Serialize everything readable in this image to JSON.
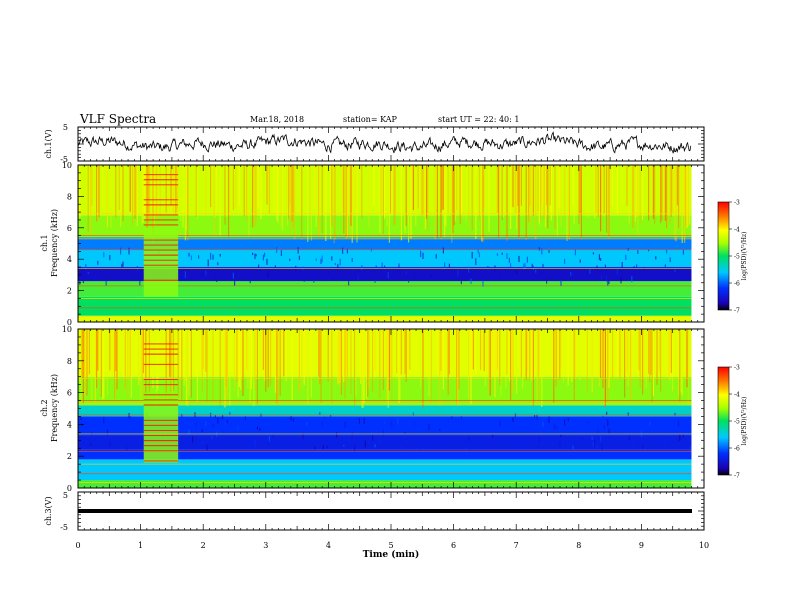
{
  "header": {
    "title": "VLF Spectra",
    "date": "Mar.18, 2018",
    "station": "station= KAP",
    "start": "start  UT =   22: 40: 1"
  },
  "chart_data": [
    {
      "type": "line",
      "panel": "ch1-waveform",
      "ylabel": "ch.1(V)",
      "ylim": [
        -5,
        5
      ],
      "yticks": [
        "5",
        "-5"
      ],
      "xlim": [
        0,
        10
      ],
      "description_of_trace": "noisy waveform, amplitude about -2 to 2 V, data to ~9.8 min"
    },
    {
      "type": "heatmap",
      "panel": "ch1-spectrogram",
      "ylabel": "ch.1\nFrequency (kHz)",
      "ylabel_lines": [
        "ch.1",
        "Frequency (kHz)"
      ],
      "ylim": [
        0,
        10
      ],
      "yticks": [
        "0",
        "2",
        "4",
        "6",
        "8",
        "10"
      ],
      "xlim": [
        0,
        10
      ],
      "data_end_min": 9.8,
      "colorbar": {
        "label": "log(PSD)(V²/Hz)",
        "range": [
          -7,
          -3
        ],
        "ticks": [
          "-3",
          "-4",
          "-5",
          "-6",
          "-7"
        ]
      },
      "bands": [
        {
          "from_khz": 0.0,
          "to_khz": 0.4,
          "level": -4.2
        },
        {
          "from_khz": 0.4,
          "to_khz": 1.6,
          "level": -5.0
        },
        {
          "from_khz": 1.6,
          "to_khz": 2.6,
          "level": -4.8
        },
        {
          "from_khz": 2.6,
          "to_khz": 3.5,
          "level": -6.6
        },
        {
          "from_khz": 3.5,
          "to_khz": 4.6,
          "level": -5.6
        },
        {
          "from_khz": 4.6,
          "to_khz": 5.4,
          "level": -5.9
        },
        {
          "from_khz": 5.4,
          "to_khz": 6.8,
          "level": -4.6
        },
        {
          "from_khz": 6.8,
          "to_khz": 10.0,
          "level": -4.3
        }
      ],
      "burst_interval_min": [
        1.05,
        1.6
      ]
    },
    {
      "type": "heatmap",
      "panel": "ch2-spectrogram",
      "ylabel": "ch.2\nFrequency (kHz)",
      "ylabel_lines": [
        "ch.2",
        "Frequency (kHz)"
      ],
      "ylim": [
        0,
        10
      ],
      "yticks": [
        "0",
        "2",
        "4",
        "6",
        "8",
        "10"
      ],
      "xlim": [
        0,
        10
      ],
      "data_end_min": 9.8,
      "colorbar": {
        "label": "log(PSD)(V²/Hz)",
        "range": [
          -7,
          -3
        ],
        "ticks": [
          "-3",
          "-4",
          "-5",
          "-6",
          "-7"
        ]
      },
      "bands": [
        {
          "from_khz": 0.0,
          "to_khz": 0.5,
          "level": -4.8
        },
        {
          "from_khz": 0.5,
          "to_khz": 1.8,
          "level": -5.6
        },
        {
          "from_khz": 1.8,
          "to_khz": 2.4,
          "level": -6.2
        },
        {
          "from_khz": 2.4,
          "to_khz": 3.3,
          "level": -6.4
        },
        {
          "from_khz": 3.3,
          "to_khz": 4.5,
          "level": -6.2
        },
        {
          "from_khz": 4.5,
          "to_khz": 5.2,
          "level": -5.4
        },
        {
          "from_khz": 5.2,
          "to_khz": 7.0,
          "level": -4.6
        },
        {
          "from_khz": 7.0,
          "to_khz": 10.0,
          "level": -4.2
        }
      ],
      "burst_interval_min": [
        1.05,
        1.6
      ]
    },
    {
      "type": "line",
      "panel": "ch3-waveform",
      "ylabel": "ch.3(V)",
      "ylim": [
        -5,
        5
      ],
      "yticks": [
        "5",
        "-5"
      ],
      "xlim": [
        0,
        10
      ],
      "xlabel": "Time (min)",
      "xticks": [
        "0",
        "1",
        "2",
        "3",
        "4",
        "5",
        "6",
        "7",
        "8",
        "9",
        "10"
      ],
      "description_of_trace": "nearly constant level around 0 V, thick line"
    }
  ]
}
